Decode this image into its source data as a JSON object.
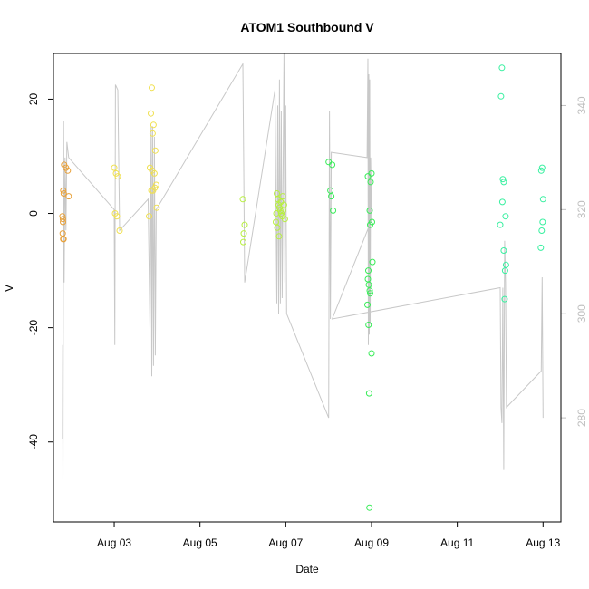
{
  "chart_data": {
    "type": "scatter",
    "title": "ATOM1 Southbound V",
    "xlabel": "Date",
    "ylabel": "V",
    "x_ticks": [
      {
        "value": "2016-08-03",
        "label": "Aug 03"
      },
      {
        "value": "2016-08-05",
        "label": "Aug 05"
      },
      {
        "value": "2016-08-07",
        "label": "Aug 07"
      },
      {
        "value": "2016-08-09",
        "label": "Aug 09"
      },
      {
        "value": "2016-08-11",
        "label": "Aug 11"
      },
      {
        "value": "2016-08-13",
        "label": "Aug 13"
      }
    ],
    "xlim": [
      "2016-08-01T14:00",
      "2016-08-13T10:00"
    ],
    "ylim": [
      -54,
      28
    ],
    "y_ticks": [
      20,
      0,
      -20,
      -40
    ],
    "y2_ticks": [
      340,
      320,
      300,
      280
    ],
    "y2lim": [
      260,
      350
    ],
    "grid": false,
    "legend": "none",
    "colors": {
      "line": "#c8c8c8",
      "right_axis": "#bfbfbf",
      "palette": [
        "#e8a038",
        "#f0e050",
        "#dff04a",
        "#b8f040",
        "#7de83a",
        "#38ec58",
        "#38f0a0"
      ]
    },
    "series": [
      {
        "kind": "points",
        "color": "#e8a038",
        "points": [
          [
            "2016-08-01T20:00",
            8.5
          ],
          [
            "2016-08-01T21:00",
            8.0
          ],
          [
            "2016-08-01T22:00",
            7.5
          ],
          [
            "2016-08-01T19:30",
            4.0
          ],
          [
            "2016-08-01T19:45",
            3.5
          ],
          [
            "2016-08-01T22:30",
            3.0
          ],
          [
            "2016-08-01T19:00",
            -0.5
          ],
          [
            "2016-08-01T19:15",
            -1.0
          ],
          [
            "2016-08-01T19:20",
            -1.5
          ],
          [
            "2016-08-01T19:10",
            -3.5
          ],
          [
            "2016-08-01T19:25",
            -4.5
          ],
          [
            "2016-08-01T19:40",
            -4.5
          ]
        ]
      },
      {
        "kind": "points",
        "color": "#f0e050",
        "points": [
          [
            "2016-08-03T00:00",
            8.0
          ],
          [
            "2016-08-03T01:00",
            7.0
          ],
          [
            "2016-08-03T02:00",
            6.5
          ],
          [
            "2016-08-03T00:30",
            0.0
          ],
          [
            "2016-08-03T01:30",
            -0.5
          ],
          [
            "2016-08-03T03:00",
            -3.0
          ],
          [
            "2016-08-03T21:00",
            22.0
          ],
          [
            "2016-08-03T20:30",
            17.5
          ],
          [
            "2016-08-03T22:00",
            15.5
          ],
          [
            "2016-08-03T21:30",
            14.0
          ],
          [
            "2016-08-03T23:00",
            11.0
          ],
          [
            "2016-08-03T20:00",
            8.0
          ],
          [
            "2016-08-03T21:15",
            7.5
          ],
          [
            "2016-08-03T22:30",
            7.0
          ],
          [
            "2016-08-03T23:30",
            5.0
          ],
          [
            "2016-08-03T22:45",
            4.5
          ],
          [
            "2016-08-03T20:45",
            4.0
          ],
          [
            "2016-08-03T21:45",
            4.0
          ],
          [
            "2016-08-03T23:45",
            1.0
          ],
          [
            "2016-08-03T19:30",
            -0.5
          ]
        ]
      },
      {
        "kind": "points",
        "color": "#b8f040",
        "points": [
          [
            "2016-08-06T00:00",
            2.5
          ],
          [
            "2016-08-06T01:00",
            -2.0
          ],
          [
            "2016-08-06T00:30",
            -3.5
          ],
          [
            "2016-08-06T00:15",
            -5.0
          ],
          [
            "2016-08-06T19:00",
            3.5
          ],
          [
            "2016-08-06T19:30",
            2.5
          ],
          [
            "2016-08-06T20:00",
            1.5
          ],
          [
            "2016-08-06T20:30",
            1.0
          ],
          [
            "2016-08-06T21:00",
            0.5
          ],
          [
            "2016-08-06T21:30",
            0.0
          ],
          [
            "2016-08-06T22:00",
            -0.5
          ],
          [
            "2016-08-06T22:30",
            0.5
          ],
          [
            "2016-08-06T23:00",
            1.5
          ],
          [
            "2016-08-06T23:30",
            -1.0
          ],
          [
            "2016-08-06T18:30",
            -1.5
          ],
          [
            "2016-08-06T19:15",
            -2.5
          ],
          [
            "2016-08-06T20:15",
            -4.0
          ],
          [
            "2016-08-06T21:15",
            2.0
          ],
          [
            "2016-08-06T18:45",
            0.0
          ],
          [
            "2016-08-06T22:15",
            3.0
          ]
        ]
      },
      {
        "kind": "points",
        "color": "#38ec58",
        "points": [
          [
            "2016-08-08T00:00",
            9.0
          ],
          [
            "2016-08-08T02:00",
            8.5
          ],
          [
            "2016-08-08T01:00",
            4.0
          ],
          [
            "2016-08-08T01:30",
            3.0
          ],
          [
            "2016-08-08T02:30",
            0.5
          ],
          [
            "2016-08-08T22:00",
            6.5
          ],
          [
            "2016-08-09T00:00",
            7.0
          ],
          [
            "2016-08-08T23:30",
            5.5
          ],
          [
            "2016-08-08T23:00",
            0.5
          ],
          [
            "2016-08-08T23:15",
            -2.0
          ],
          [
            "2016-08-09T00:15",
            -1.5
          ],
          [
            "2016-08-09T00:30",
            -8.5
          ],
          [
            "2016-08-08T22:15",
            -10.0
          ],
          [
            "2016-08-08T22:00",
            -11.5
          ],
          [
            "2016-08-08T22:30",
            -12.5
          ],
          [
            "2016-08-08T23:00",
            -13.5
          ],
          [
            "2016-08-08T23:15",
            -14.0
          ],
          [
            "2016-08-08T21:45",
            -16.0
          ],
          [
            "2016-08-08T22:20",
            -19.5
          ],
          [
            "2016-08-09T00:00",
            -24.5
          ],
          [
            "2016-08-08T22:40",
            -31.5
          ],
          [
            "2016-08-08T22:50",
            -51.5
          ]
        ]
      },
      {
        "kind": "points",
        "color": "#38f0a0",
        "points": [
          [
            "2016-08-12T01:00",
            25.5
          ],
          [
            "2016-08-12T00:30",
            20.5
          ],
          [
            "2016-08-12T01:30",
            6.0
          ],
          [
            "2016-08-12T02:00",
            5.5
          ],
          [
            "2016-08-12T01:15",
            2.0
          ],
          [
            "2016-08-12T03:00",
            -0.5
          ],
          [
            "2016-08-12T00:00",
            -2.0
          ],
          [
            "2016-08-12T02:00",
            -6.5
          ],
          [
            "2016-08-12T03:15",
            -9.0
          ],
          [
            "2016-08-12T02:45",
            -10.0
          ],
          [
            "2016-08-12T02:30",
            -15.0
          ],
          [
            "2016-08-12T23:30",
            8.0
          ],
          [
            "2016-08-12T23:00",
            7.5
          ],
          [
            "2016-08-13T00:00",
            2.5
          ],
          [
            "2016-08-12T23:45",
            -1.5
          ],
          [
            "2016-08-12T23:15",
            -3.0
          ],
          [
            "2016-08-12T22:45",
            -6.0
          ]
        ]
      },
      {
        "kind": "line",
        "color": "#c8c8c8",
        "axis": "right",
        "points": [
          [
            "2016-08-01T19:00",
            276
          ],
          [
            "2016-08-01T19:10",
            294
          ],
          [
            "2016-08-01T19:20",
            268
          ],
          [
            "2016-08-01T19:40",
            337
          ],
          [
            "2016-08-01T20:00",
            306
          ],
          [
            "2016-08-01T20:30",
            330
          ],
          [
            "2016-08-01T21:00",
            316
          ],
          [
            "2016-08-01T21:30",
            333
          ],
          [
            "2016-08-01T22:30",
            330
          ],
          [
            "2016-08-03T00:00",
            320
          ],
          [
            "2016-08-03T00:20",
            294
          ],
          [
            "2016-08-03T00:40",
            344
          ],
          [
            "2016-08-03T02:00",
            343
          ],
          [
            "2016-08-03T03:00",
            316
          ],
          [
            "2016-08-03T19:00",
            322
          ],
          [
            "2016-08-03T20:00",
            297
          ],
          [
            "2016-08-03T20:40",
            336
          ],
          [
            "2016-08-03T21:00",
            288
          ],
          [
            "2016-08-03T21:30",
            336
          ],
          [
            "2016-08-03T22:00",
            290
          ],
          [
            "2016-08-03T22:30",
            334
          ],
          [
            "2016-08-03T23:00",
            292
          ],
          [
            "2016-08-03T23:30",
            320
          ],
          [
            "2016-08-06T00:00",
            348
          ],
          [
            "2016-08-06T00:30",
            328
          ],
          [
            "2016-08-06T01:00",
            306
          ],
          [
            "2016-08-06T18:00",
            343
          ],
          [
            "2016-08-06T19:00",
            302
          ],
          [
            "2016-08-06T19:30",
            340
          ],
          [
            "2016-08-06T20:00",
            300
          ],
          [
            "2016-08-06T20:30",
            345
          ],
          [
            "2016-08-06T21:00",
            302
          ],
          [
            "2016-08-06T21:30",
            339
          ],
          [
            "2016-08-06T22:00",
            303
          ],
          [
            "2016-08-06T23:00",
            350
          ],
          [
            "2016-08-06T23:30",
            306
          ],
          [
            "2016-08-07T00:00",
            340
          ],
          [
            "2016-08-07T00:30",
            300
          ],
          [
            "2016-08-08T00:00",
            280
          ],
          [
            "2016-08-08T00:30",
            339
          ],
          [
            "2016-08-08T01:00",
            299
          ],
          [
            "2016-08-08T01:30",
            331
          ],
          [
            "2016-08-08T21:30",
            330
          ],
          [
            "2016-08-08T22:00",
            349
          ],
          [
            "2016-08-08T22:15",
            294
          ],
          [
            "2016-08-08T22:30",
            346
          ],
          [
            "2016-08-08T22:45",
            296
          ],
          [
            "2016-08-08T23:00",
            345
          ],
          [
            "2016-08-08T23:15",
            298
          ],
          [
            "2016-08-08T23:30",
            330
          ],
          [
            "2016-08-09T00:00",
            318
          ],
          [
            "2016-08-08T02:00",
            299
          ],
          [
            "2016-08-12T00:00",
            305
          ],
          [
            "2016-08-12T00:30",
            282
          ],
          [
            "2016-08-12T01:00",
            279
          ],
          [
            "2016-08-12T01:30",
            305
          ],
          [
            "2016-08-12T02:00",
            270
          ],
          [
            "2016-08-12T02:30",
            314
          ],
          [
            "2016-08-12T03:00",
            306
          ],
          [
            "2016-08-12T03:30",
            282
          ],
          [
            "2016-08-12T23:00",
            289
          ],
          [
            "2016-08-12T23:30",
            307
          ],
          [
            "2016-08-13T00:00",
            280
          ]
        ]
      }
    ]
  }
}
